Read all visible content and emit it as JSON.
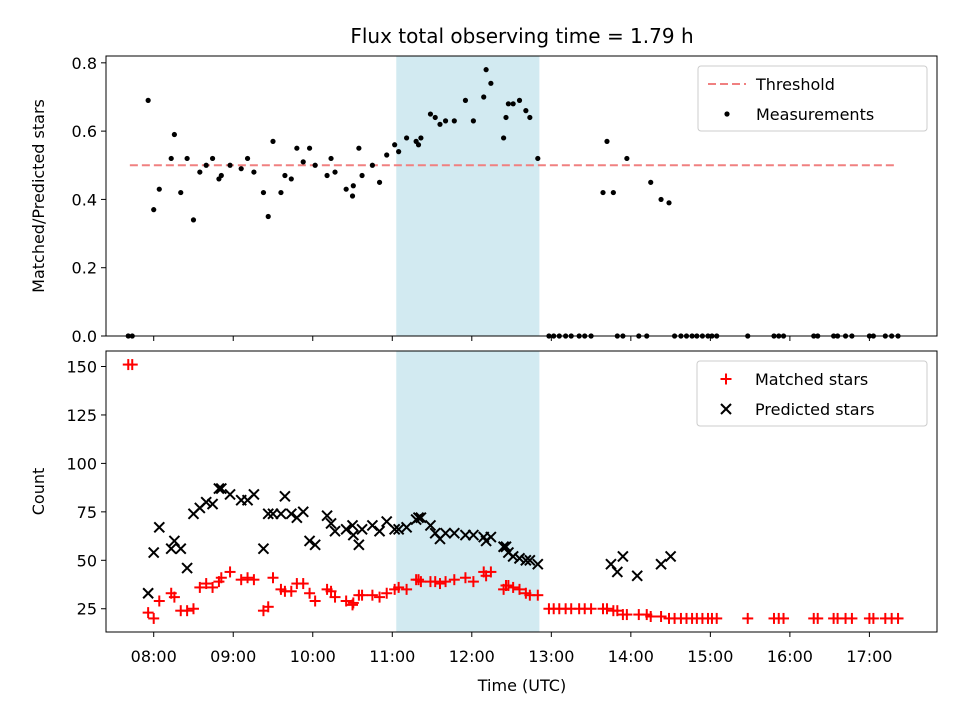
{
  "chart_data": {
    "title": "Flux total observing time = 1.79 h",
    "xlabel": "Time (UTC)",
    "x_ticks": [
      "08:00",
      "09:00",
      "10:00",
      "11:00",
      "12:00",
      "13:00",
      "14:00",
      "15:00",
      "16:00",
      "17:00"
    ],
    "xlim_hours": [
      7.4,
      17.85
    ],
    "highlight_span_hours": [
      11.05,
      12.85
    ],
    "highlight_color": "#add8e6",
    "panels": [
      {
        "type": "scatter",
        "ylabel": "Matched/Predicted stars",
        "ylim": [
          0,
          0.82
        ],
        "y_ticks": [
          "0.0",
          "0.2",
          "0.4",
          "0.6",
          "0.8"
        ],
        "threshold": {
          "name": "Threshold",
          "value": 0.5,
          "color": "#f08080",
          "x_range": [
            7.7,
            17.35
          ]
        },
        "legend": [
          "Threshold",
          "Measurements"
        ],
        "legend_position": "top-right",
        "series": [
          {
            "name": "Measurements",
            "marker": "dot",
            "color": "#000000",
            "x": [
              7.68,
              7.73,
              7.93,
              8.0,
              8.07,
              8.22,
              8.26,
              8.34,
              8.42,
              8.5,
              8.58,
              8.66,
              8.74,
              8.82,
              8.85,
              8.96,
              9.1,
              9.18,
              9.26,
              9.38,
              9.44,
              9.5,
              9.6,
              9.65,
              9.73,
              9.8,
              9.88,
              9.96,
              10.03,
              10.18,
              10.23,
              10.28,
              10.42,
              10.5,
              10.51,
              10.58,
              10.62,
              10.75,
              10.84,
              10.93,
              11.03,
              11.08,
              11.18,
              11.3,
              11.33,
              11.36,
              11.48,
              11.54,
              11.6,
              11.67,
              11.78,
              11.92,
              12.02,
              12.15,
              12.18,
              12.24,
              12.4,
              12.43,
              12.46,
              12.52,
              12.6,
              12.68,
              12.73,
              12.83,
              12.97,
              13.03,
              13.1,
              13.18,
              13.25,
              13.35,
              13.42,
              13.5,
              13.65,
              13.7,
              13.78,
              13.83,
              13.9,
              13.95,
              14.1,
              14.2,
              14.25,
              14.38,
              14.48,
              14.55,
              14.63,
              14.7,
              14.77,
              14.83,
              14.9,
              14.97,
              15.02,
              15.08,
              15.47,
              15.8,
              15.86,
              15.92,
              16.3,
              16.35,
              16.55,
              16.6,
              16.7,
              16.78,
              17.0,
              17.05,
              17.2,
              17.28,
              17.36
            ],
            "y": [
              0,
              0,
              0.69,
              0.37,
              0.43,
              0.52,
              0.59,
              0.42,
              0.52,
              0.34,
              0.48,
              0.5,
              0.52,
              0.46,
              0.47,
              0.5,
              0.49,
              0.52,
              0.48,
              0.42,
              0.35,
              0.57,
              0.42,
              0.47,
              0.46,
              0.55,
              0.51,
              0.55,
              0.5,
              0.47,
              0.52,
              0.48,
              0.43,
              0.41,
              0.44,
              0.55,
              0.47,
              0.5,
              0.45,
              0.53,
              0.56,
              0.54,
              0.58,
              0.57,
              0.56,
              0.58,
              0.65,
              0.64,
              0.62,
              0.63,
              0.63,
              0.69,
              0.63,
              0.7,
              0.78,
              0.74,
              0.58,
              0.64,
              0.68,
              0.68,
              0.69,
              0.66,
              0.64,
              0.52,
              0,
              0,
              0,
              0,
              0,
              0,
              0,
              0,
              0.42,
              0.57,
              0.42,
              0,
              0,
              0.52,
              0,
              0,
              0.45,
              0.4,
              0.39,
              0,
              0,
              0,
              0,
              0,
              0,
              0,
              0,
              0,
              0,
              0,
              0,
              0,
              0,
              0,
              0,
              0,
              0,
              0,
              0,
              0,
              0,
              0,
              0
            ]
          }
        ]
      },
      {
        "type": "scatter",
        "ylabel": "Count",
        "ylim": [
          13,
          158
        ],
        "y_ticks": [
          "25",
          "50",
          "75",
          "100",
          "125",
          "150"
        ],
        "legend": [
          "Matched stars",
          "Predicted stars"
        ],
        "legend_position": "top-right",
        "series": [
          {
            "name": "Matched stars",
            "marker": "plus",
            "color": "#ff0000",
            "x": [
              7.68,
              7.73,
              7.93,
              8.0,
              8.07,
              8.22,
              8.26,
              8.34,
              8.42,
              8.5,
              8.58,
              8.66,
              8.74,
              8.82,
              8.85,
              8.96,
              9.1,
              9.18,
              9.26,
              9.38,
              9.44,
              9.5,
              9.6,
              9.65,
              9.73,
              9.8,
              9.88,
              9.96,
              10.03,
              10.18,
              10.23,
              10.28,
              10.42,
              10.5,
              10.51,
              10.58,
              10.62,
              10.75,
              10.84,
              10.93,
              11.03,
              11.08,
              11.18,
              11.3,
              11.33,
              11.36,
              11.48,
              11.54,
              11.6,
              11.67,
              11.78,
              11.92,
              12.02,
              12.15,
              12.18,
              12.24,
              12.4,
              12.43,
              12.46,
              12.52,
              12.6,
              12.68,
              12.73,
              12.83,
              12.97,
              13.03,
              13.1,
              13.18,
              13.25,
              13.35,
              13.42,
              13.5,
              13.65,
              13.7,
              13.78,
              13.83,
              13.9,
              13.95,
              14.1,
              14.2,
              14.25,
              14.38,
              14.48,
              14.55,
              14.63,
              14.7,
              14.77,
              14.83,
              14.9,
              14.97,
              15.02,
              15.08,
              15.47,
              15.8,
              15.86,
              15.92,
              16.3,
              16.35,
              16.55,
              16.6,
              16.7,
              16.78,
              17.0,
              17.05,
              17.2,
              17.28,
              17.36
            ],
            "y": [
              151,
              151,
              23,
              20,
              29,
              33,
              31,
              24,
              24,
              25,
              36,
              38,
              36,
              39,
              41,
              44,
              40,
              41,
              40,
              24,
              26,
              41,
              35,
              34,
              34,
              38,
              38,
              33,
              29,
              35,
              34,
              31,
              29,
              27,
              28,
              32,
              32,
              32,
              31,
              33,
              35,
              36,
              35,
              40,
              40,
              39,
              39,
              39,
              38,
              39,
              40,
              41,
              39,
              44,
              42,
              44,
              35,
              37,
              37,
              36,
              35,
              33,
              32,
              32,
              25,
              25,
              25,
              25,
              25,
              25,
              25,
              25,
              25,
              25,
              24,
              24,
              22,
              22,
              22,
              22,
              21,
              21,
              20,
              20,
              20,
              20,
              20,
              20,
              20,
              20,
              20,
              20,
              20,
              20,
              20,
              20,
              20,
              20,
              20,
              20,
              20,
              20,
              20,
              20,
              20,
              20,
              20
            ]
          },
          {
            "name": "Predicted stars",
            "marker": "x",
            "color": "#000000",
            "x": [
              7.93,
              8.0,
              8.07,
              8.22,
              8.26,
              8.34,
              8.42,
              8.5,
              8.58,
              8.66,
              8.74,
              8.82,
              8.85,
              8.96,
              9.1,
              9.18,
              9.26,
              9.38,
              9.44,
              9.5,
              9.6,
              9.65,
              9.73,
              9.8,
              9.88,
              9.96,
              10.03,
              10.18,
              10.23,
              10.28,
              10.42,
              10.5,
              10.51,
              10.58,
              10.62,
              10.75,
              10.84,
              10.93,
              11.03,
              11.08,
              11.18,
              11.3,
              11.33,
              11.36,
              11.48,
              11.54,
              11.6,
              11.67,
              11.78,
              11.92,
              12.02,
              12.15,
              12.18,
              12.24,
              12.4,
              12.43,
              12.46,
              12.52,
              12.6,
              12.68,
              12.73,
              12.83,
              13.75,
              13.83,
              13.9,
              14.08,
              14.38,
              14.5
            ],
            "y": [
              33,
              54,
              67,
              56,
              60,
              56,
              46,
              74,
              77,
              80,
              79,
              87,
              87,
              84,
              81,
              81,
              84,
              56,
              74,
              74,
              74,
              83,
              74,
              72,
              75,
              60,
              58,
              73,
              69,
              65,
              66,
              68,
              63,
              58,
              66,
              68,
              65,
              70,
              66,
              66,
              67,
              71,
              72,
              72,
              68,
              64,
              61,
              64,
              64,
              63,
              63,
              62,
              60,
              62,
              57,
              57,
              54,
              52,
              51,
              50,
              50,
              48,
              48,
              44,
              52,
              42,
              48,
              52
            ]
          }
        ]
      }
    ]
  }
}
